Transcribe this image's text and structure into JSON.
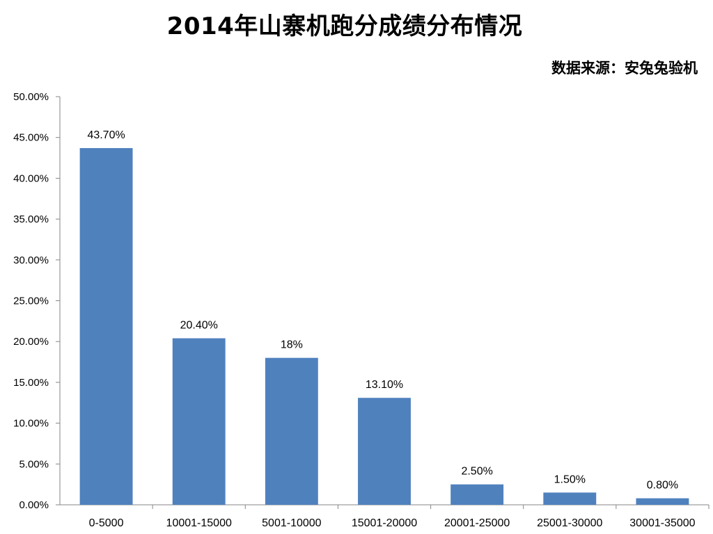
{
  "chart_data": {
    "type": "bar",
    "title": "2014年山寨机跑分成绩分布情况",
    "source_note": "数据来源：安兔兔验机",
    "categories": [
      "0-5000",
      "10001-15000",
      "5001-10000",
      "15001-20000",
      "20001-25000",
      "25001-30000",
      "30001-35000"
    ],
    "values": [
      43.7,
      20.4,
      18,
      13.1,
      2.5,
      1.5,
      0.8
    ],
    "data_labels": [
      "43.70%",
      "20.40%",
      "18%",
      "13.10%",
      "2.50%",
      "1.50%",
      "0.80%"
    ],
    "y_ticks": [
      0,
      5,
      10,
      15,
      20,
      25,
      30,
      35,
      40,
      45,
      50
    ],
    "y_tick_labels": [
      "0.00%",
      "5.00%",
      "10.00%",
      "15.00%",
      "20.00%",
      "25.00%",
      "30.00%",
      "35.00%",
      "40.00%",
      "45.00%",
      "50.00%"
    ],
    "ylim": [
      0,
      50
    ],
    "xlabel": "",
    "ylabel": "",
    "grid": false,
    "legend": "none",
    "colors": {
      "bar": "#4f81bd",
      "axis": "#868686"
    }
  }
}
